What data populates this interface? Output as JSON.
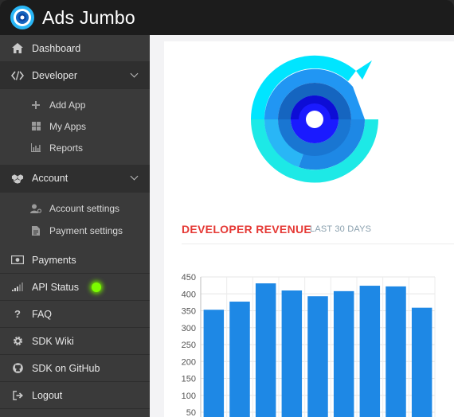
{
  "app": {
    "title": "Ads Jumbo"
  },
  "sidebar": {
    "dashboard": "Dashboard",
    "developer": "Developer",
    "developer_items": [
      "Add App",
      "My Apps",
      "Reports"
    ],
    "account": "Account",
    "account_items": [
      "Account settings",
      "Payment settings"
    ],
    "payments": "Payments",
    "api_status": "API Status",
    "faq": "FAQ",
    "sdk_wiki": "SDK Wiki",
    "sdk_github": "SDK on GitHub",
    "logout": "Logout"
  },
  "revenue": {
    "title": "DEVELOPER REVENUE",
    "subtitle": "LAST 30 DAYS"
  },
  "colors": {
    "accent_red": "#e53935",
    "bar": "#1e88e5",
    "status_online": "#7cfc00"
  },
  "chart_data": {
    "type": "bar",
    "values": [
      353,
      377,
      431,
      410,
      393,
      408,
      424,
      422,
      359
    ],
    "y_ticks": [
      450,
      400,
      350,
      300,
      250,
      200,
      150,
      100,
      50
    ],
    "ylim": [
      0,
      450
    ],
    "grid": true
  }
}
